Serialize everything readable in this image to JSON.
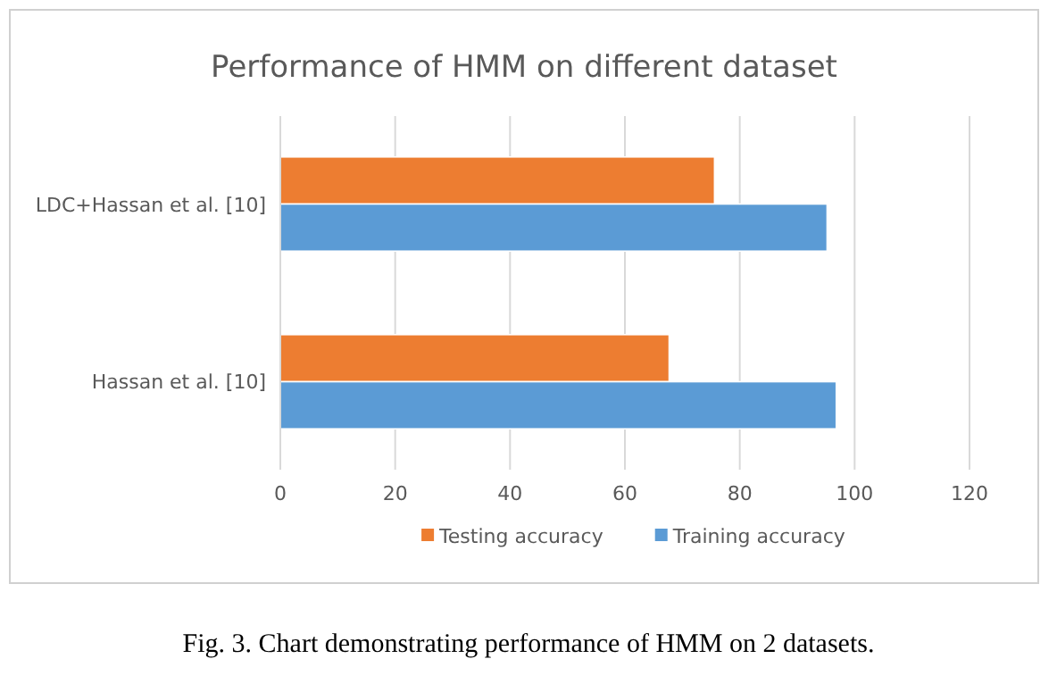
{
  "chart_data": {
    "type": "bar",
    "orientation": "horizontal",
    "title": "Performance of HMM on different dataset",
    "categories": [
      "LDC+Hassan et al. [10]",
      "Hassan et al. [10]"
    ],
    "series": [
      {
        "name": "Testing accuracy",
        "color": "#ed7d31",
        "values": [
          75.6,
          67.7
        ]
      },
      {
        "name": "Training accuracy",
        "color": "#5b9bd5",
        "values": [
          95.2,
          96.8
        ]
      }
    ],
    "xlim": [
      0,
      120
    ],
    "xticks": [
      0,
      20,
      40,
      60,
      80,
      100,
      120
    ],
    "grid": "x",
    "legend": "bottom",
    "annotations": [
      "Fig. 3.  Chart demonstrating performance of HMM on 2 datasets."
    ]
  }
}
